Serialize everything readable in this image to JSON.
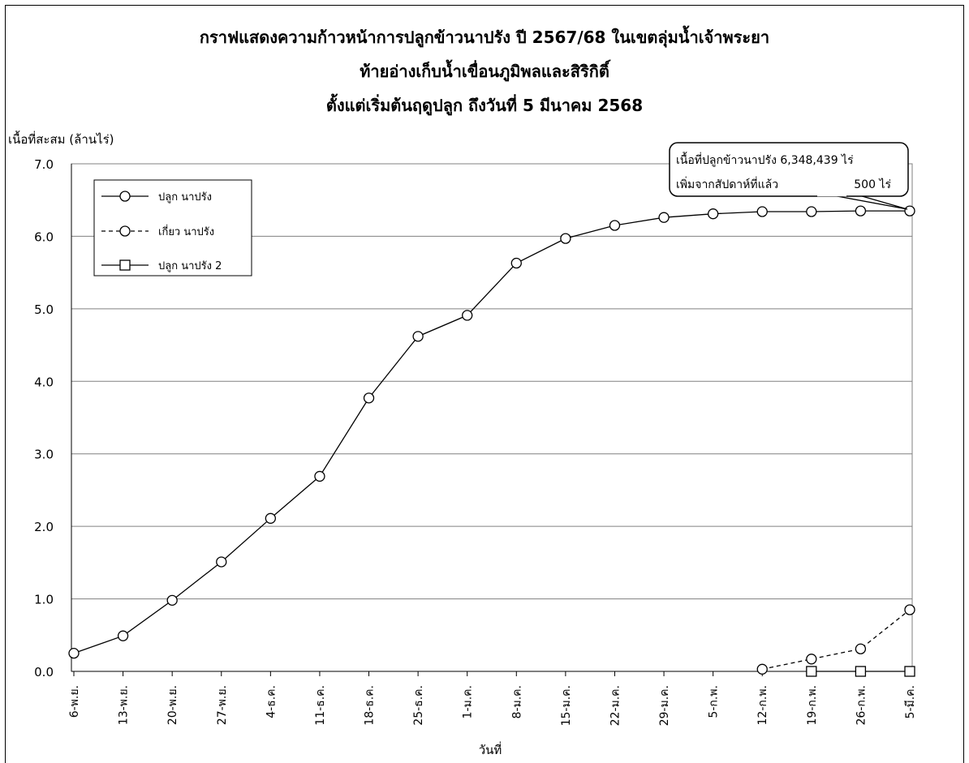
{
  "chart_data": {
    "type": "line",
    "title": [
      "กราฟแสดงความก้าวหน้าการปลูกข้าวนาปรัง ปี 2567/68 ในเขตลุ่มน้ำเจ้าพระยา",
      "ท้ายอ่างเก็บน้ำเขื่อนภูมิพลและสิริกิติ์",
      "ตั้งแต่เริ่มต้นฤดูปลูก ถึงวันที่ 5 มีนาคม 2568"
    ],
    "ylabel": "เนื้อที่สะสม (ล้านไร่)",
    "xlabel": "วันที่",
    "ylim": [
      0,
      7
    ],
    "yticks": [
      "0.0",
      "1.0",
      "2.0",
      "3.0",
      "4.0",
      "5.0",
      "6.0",
      "7.0"
    ],
    "grid": true,
    "legend_position": "top-left",
    "categories": [
      "6-พ.ย.",
      "13-พ.ย.",
      "20-พ.ย.",
      "27-พ.ย.",
      "4-ธ.ค.",
      "11-ธ.ค.",
      "18-ธ.ค.",
      "25-ธ.ค.",
      "1-ม.ค.",
      "8-ม.ค.",
      "15-ม.ค.",
      "22-ม.ค.",
      "29-ม.ค.",
      "5-ก.พ.",
      "12-ก.พ.",
      "19-ก.พ.",
      "26-ก.พ.",
      "5-มี.ค."
    ],
    "series": [
      {
        "name": "ปลูก นาปรัง",
        "style": "solid",
        "marker": "circle",
        "values": [
          0.25,
          0.49,
          0.98,
          1.51,
          2.11,
          2.69,
          3.77,
          4.62,
          4.91,
          5.63,
          5.97,
          6.15,
          6.26,
          6.31,
          6.34,
          6.34,
          6.35,
          6.35
        ]
      },
      {
        "name": "เกี่ยว นาปรัง",
        "style": "dashed",
        "marker": "circle",
        "values": [
          null,
          null,
          null,
          null,
          null,
          null,
          null,
          null,
          null,
          null,
          null,
          null,
          null,
          null,
          0.03,
          0.17,
          0.31,
          0.85
        ]
      },
      {
        "name": "ปลูก นาปรัง 2",
        "style": "solid",
        "marker": "square",
        "values": [
          null,
          null,
          null,
          null,
          null,
          null,
          null,
          null,
          null,
          null,
          null,
          null,
          null,
          null,
          null,
          0.0,
          0.0,
          0.0
        ]
      }
    ],
    "annotation": {
      "line1": "เนื้อที่ปลูกข้าวนาปรัง 6,348,439 ไร่",
      "line2_label": "เพิ่มจากสัปดาห์ที่แล้ว",
      "line2_value": "500 ไร่"
    }
  }
}
